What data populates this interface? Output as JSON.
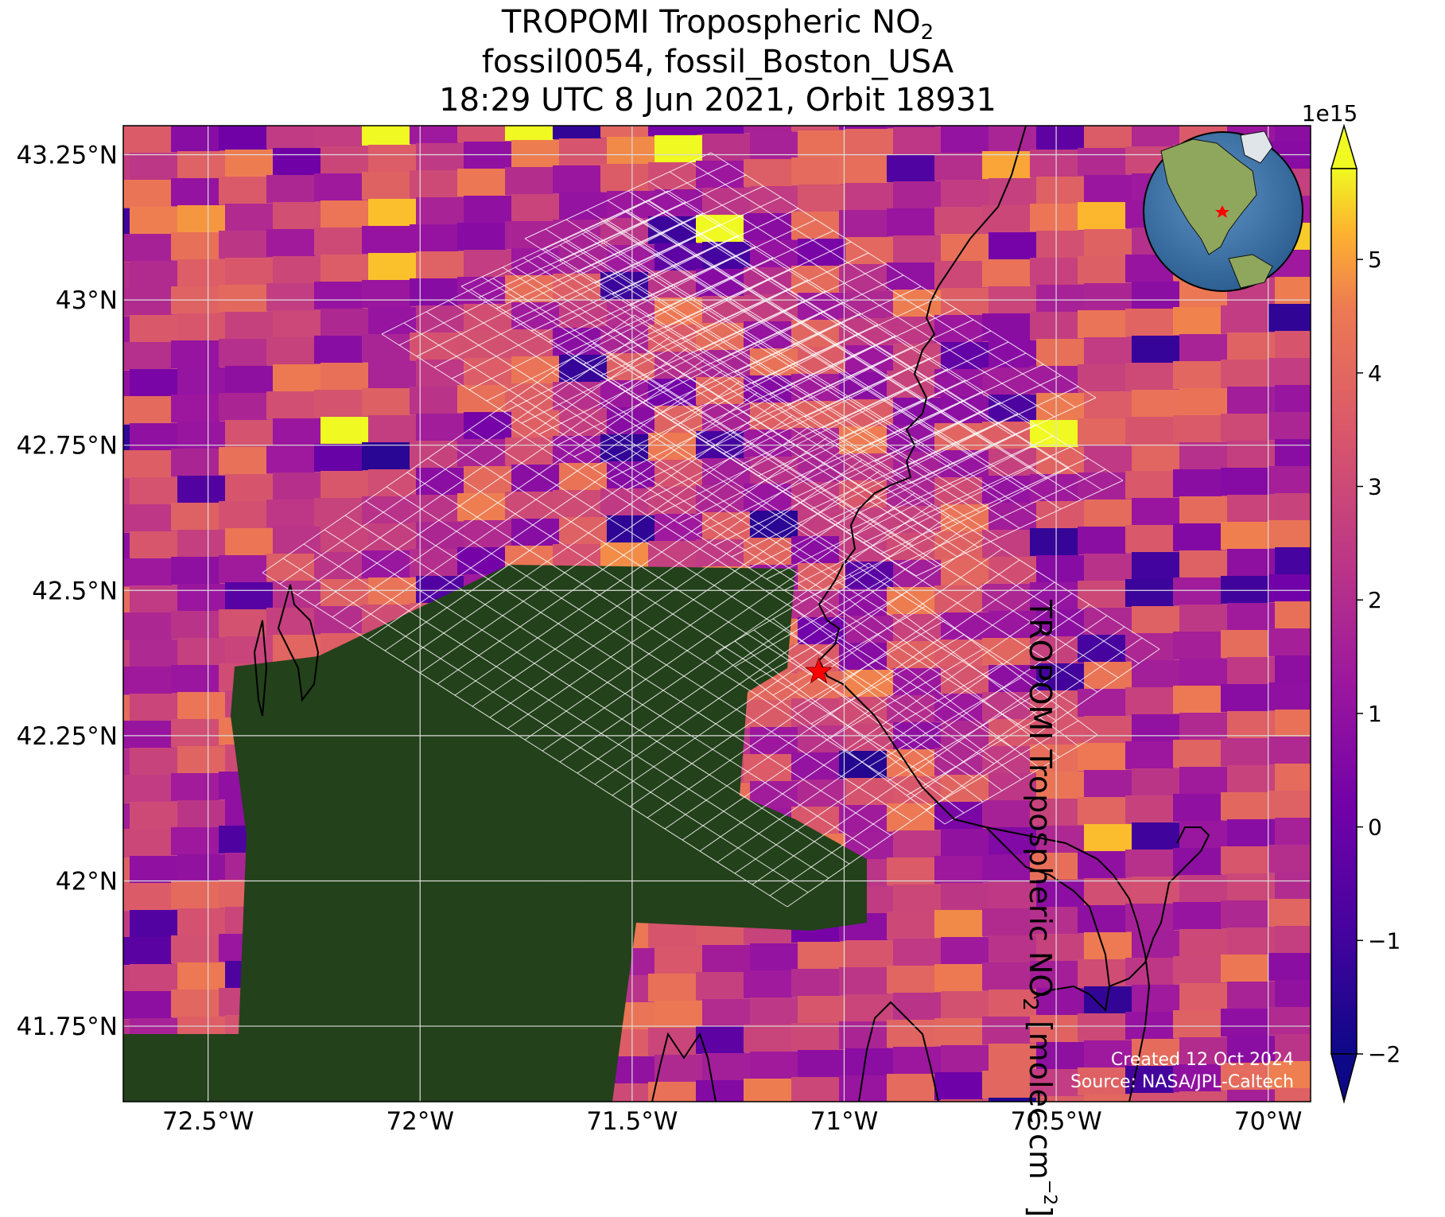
{
  "title": {
    "line1_prefix": "TROPOMI Tropospheric NO",
    "line1_sub": "2",
    "line2": "fossil0054, fossil_Boston_USA",
    "line3": "18:29 UTC 8 Jun 2021, Orbit 18931"
  },
  "axes": {
    "lon_ticks": [
      "72.5°W",
      "72°W",
      "71.5°W",
      "71°W",
      "70.5°W",
      "70°W"
    ],
    "lon_values": [
      -72.5,
      -72.0,
      -71.5,
      -71.0,
      -70.5,
      -70.0
    ],
    "lat_ticks": [
      "43.25°N",
      "43°N",
      "42.75°N",
      "42.5°N",
      "42.25°N",
      "42°N",
      "41.75°N"
    ],
    "lat_values": [
      43.25,
      43.0,
      42.75,
      42.5,
      42.25,
      42.0,
      41.75
    ],
    "lon_range": [
      -72.7,
      -69.9
    ],
    "lat_range": [
      41.62,
      43.3
    ],
    "grid": true
  },
  "colorbar": {
    "label_prefix": "TROPOMI Tropospheric NO",
    "label_sub": "2",
    "label_unit_pre": " [molec cm",
    "label_unit_sup": "−2",
    "label_unit_post": "]",
    "multiplier": "1e15",
    "ticks": [
      "−2",
      "−1",
      "0",
      "1",
      "2",
      "3",
      "4",
      "5"
    ],
    "tick_values": [
      -2,
      -1,
      0,
      1,
      2,
      3,
      4,
      5
    ],
    "range": [
      -2,
      5.8
    ],
    "colormap": "plasma",
    "extend": "both"
  },
  "marker": {
    "name": "Boston source",
    "lon": -71.06,
    "lat": 42.36,
    "color": "#ff0000"
  },
  "credits": {
    "line1": "Created 12 Oct 2024",
    "line2": "Source: NASA/JPL-Caltech"
  },
  "colors": {
    "land": "#23411a",
    "coast": "#000000",
    "grid": "#dcdcdc",
    "footprint": "#ffffff"
  }
}
